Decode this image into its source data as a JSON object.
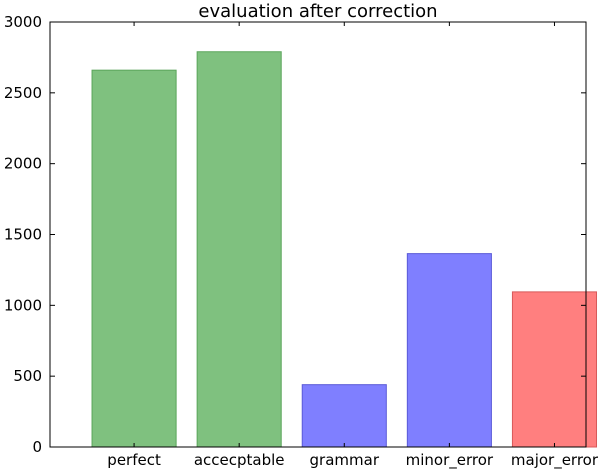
{
  "chart_data": {
    "type": "bar",
    "title": "evaluation after correction",
    "xlabel": "",
    "ylabel": "",
    "categories": [
      "perfect",
      "accecptable",
      "grammar",
      "minor_error",
      "major_error"
    ],
    "values": [
      2660,
      2790,
      440,
      1365,
      1095
    ],
    "bar_colors": [
      "#7fc17f",
      "#7fc17f",
      "#7f7fff",
      "#7f7fff",
      "#ff7f7f"
    ],
    "bar_edge_colors": [
      "#5aa55a",
      "#5aa55a",
      "#5a5ad8",
      "#5a5ad8",
      "#d85a5a"
    ],
    "ylim": [
      0,
      3000
    ],
    "yticks": [
      0,
      500,
      1000,
      1500,
      2000,
      2500,
      3000
    ],
    "grid": false,
    "legend": "none"
  }
}
